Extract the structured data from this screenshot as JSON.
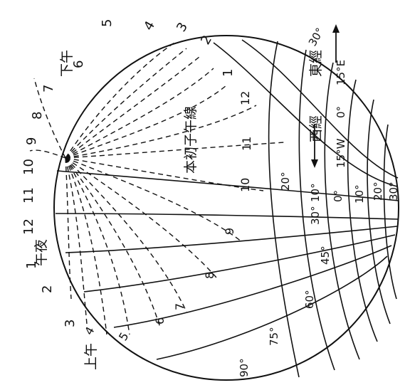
{
  "labels": {
    "afternoon": "下午",
    "midnight": "午夜",
    "morning": "上午",
    "prime_meridian": "本初子午線",
    "west_longitude": "西經",
    "east_longitude": "東經"
  },
  "outer_hours": [
    "5",
    "4",
    "3",
    "2",
    "1",
    "12",
    "11",
    "10",
    "9",
    "8",
    "7",
    "6",
    "1",
    "2",
    "3",
    "4",
    "5",
    "6",
    "7",
    "8",
    "9"
  ],
  "outer_times": {
    "left_midnight": "12",
    "top_six": "6"
  },
  "longitudes": {
    "e30": "30°",
    "e15": "15°E",
    "zero": "0°",
    "w15": "15°W"
  },
  "latitudes": {
    "lat_20_left": "20°",
    "lat_10_left": "10°",
    "lat_0": "0°",
    "lat_10_right": "10°",
    "lat_20_right": "20°",
    "lat_30_right": "30°",
    "lat_30_left": "30°",
    "lat_45": "45°",
    "lat_60": "60°",
    "lat_75": "75°",
    "lat_90": "90°"
  },
  "colors": {
    "ink": "#111111",
    "paper": "#ffffff"
  }
}
